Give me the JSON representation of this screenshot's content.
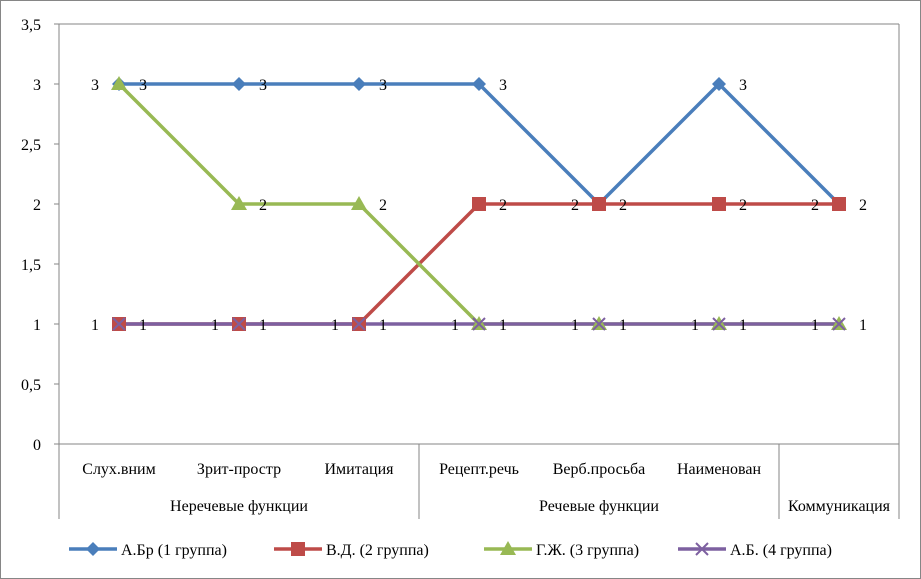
{
  "chart_data": {
    "type": "line",
    "title": "",
    "xlabel": "",
    "ylabel": "",
    "ylim": [
      0,
      3.5
    ],
    "yticks": [
      "0",
      "0,5",
      "1",
      "1,5",
      "2",
      "2,5",
      "3",
      "3,5"
    ],
    "categories": [
      "Слух.вним",
      "Зрит-простр",
      "Имитация",
      "Рецепт.речь",
      "Верб.просьба",
      "Наименован",
      ""
    ],
    "groups": [
      {
        "label": "Неречевые функции",
        "count": 3
      },
      {
        "label": "Речевые функции",
        "count": 3
      },
      {
        "label": "Коммуникация",
        "count": 1
      }
    ],
    "legend_position": "bottom",
    "grid": false,
    "series": [
      {
        "name": "А.Бр (1 группа)",
        "color": "#4a7ebb",
        "marker": "diamond",
        "values": [
          3,
          3,
          3,
          3,
          2,
          3,
          2
        ]
      },
      {
        "name": "В.Д. (2 группа)",
        "color": "#be4b48",
        "marker": "square",
        "values": [
          1,
          1,
          1,
          2,
          2,
          2,
          2
        ]
      },
      {
        "name": "Г.Ж. (3 группа)",
        "color": "#98b954",
        "marker": "triangle",
        "values": [
          3,
          2,
          2,
          1,
          1,
          1,
          1
        ]
      },
      {
        "name": "А.Б. (4 группа)",
        "color": "#7d60a0",
        "marker": "x",
        "values": [
          1,
          1,
          1,
          1,
          1,
          1,
          1
        ]
      }
    ]
  }
}
